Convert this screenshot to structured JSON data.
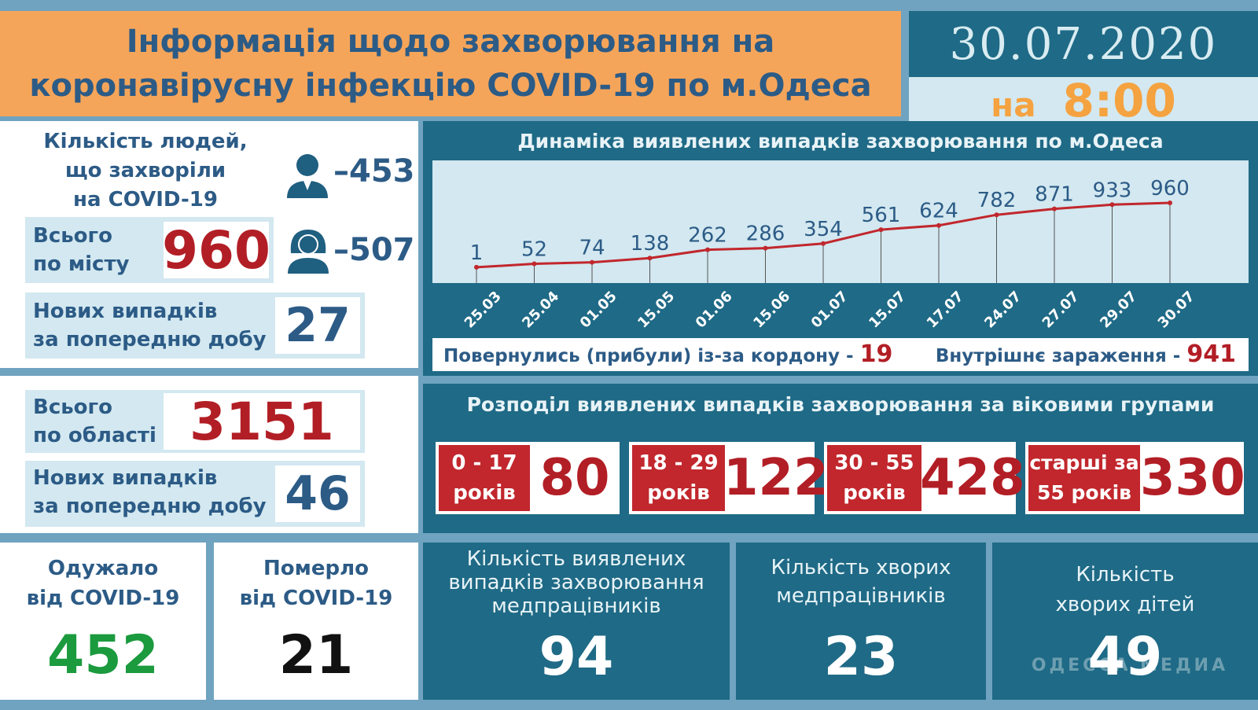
{
  "header": {
    "title_line1": "Інформація щодо захворювання на",
    "title_line2": "коронавірусну інфекцію COVID-19 по м.Одеса",
    "date": "30.07.2020",
    "time_prefix": "на",
    "time": "8:00"
  },
  "city": {
    "people_label_1": "Кількість людей,",
    "people_label_2": "що захворіли",
    "people_label_3": "на COVID-19",
    "male_count": "–453",
    "female_count": "–507",
    "total_label_1": "Всього",
    "total_label_2": "по місту",
    "total_value": "960",
    "new_label_1": "Нових випадків",
    "new_label_2": "за попередню добу",
    "new_value": "27"
  },
  "region": {
    "total_label_1": "Всього",
    "total_label_2": "по області",
    "total_value": "3151",
    "new_label_1": "Нових випадків",
    "new_label_2": "за попередню добу",
    "new_value": "46"
  },
  "recovered": {
    "label_1": "Одужало",
    "label_2": "від COVID-19",
    "value": "452"
  },
  "died": {
    "label_1": "Померло",
    "label_2": "від COVID-19",
    "value": "21"
  },
  "dynamics": {
    "title": "Динаміка виявлених випадків захворювання по м.Одеса",
    "returned_label": "Повернулись (прибули) із-за кордону -",
    "returned_value": "19",
    "internal_label": "Внутрішнє зараження -",
    "internal_value": "941"
  },
  "chart_data": {
    "type": "line",
    "title": "Динаміка виявлених випадків захворювання по м.Одеса",
    "categories": [
      "25.03",
      "25.04",
      "01.05",
      "15.05",
      "01.06",
      "15.06",
      "01.07",
      "15.07",
      "17.07",
      "24.07",
      "27.07",
      "29.07",
      "30.07"
    ],
    "values": [
      1,
      52,
      74,
      138,
      262,
      286,
      354,
      561,
      624,
      782,
      871,
      933,
      960
    ],
    "ylim": [
      0,
      1000
    ],
    "grid": false,
    "line_color": "#c1272d"
  },
  "age_groups": {
    "title": "Розподіл виявлених випадків захворювання за віковими групами",
    "groups": [
      {
        "line1": "0 - 17",
        "line2": "років",
        "value": "80"
      },
      {
        "line1": "18 - 29",
        "line2": "років",
        "value": "122"
      },
      {
        "line1": "30 - 55",
        "line2": "років",
        "value": "428"
      },
      {
        "line1": "старші за",
        "line2": "55 років",
        "value": "330"
      }
    ]
  },
  "medics_cases": {
    "label_1": "Кількість виявлених",
    "label_2": "випадків захворювання",
    "label_3": "медпрацівників",
    "value": "94"
  },
  "medics_sick": {
    "label_1": "Кількість хворих",
    "label_2": "медпрацівників",
    "value": "23"
  },
  "children_sick": {
    "label_1": "Кількість",
    "label_2": "хворих дітей",
    "value": "49"
  },
  "watermark": "ОДЕССА МЕДИА",
  "colors": {
    "teal": "#1f6a86",
    "orange": "#f5a55a",
    "red": "#c1272d",
    "light_blue": "#d3e8f0"
  },
  "icons": {
    "male": "man-icon",
    "female": "woman-icon"
  }
}
